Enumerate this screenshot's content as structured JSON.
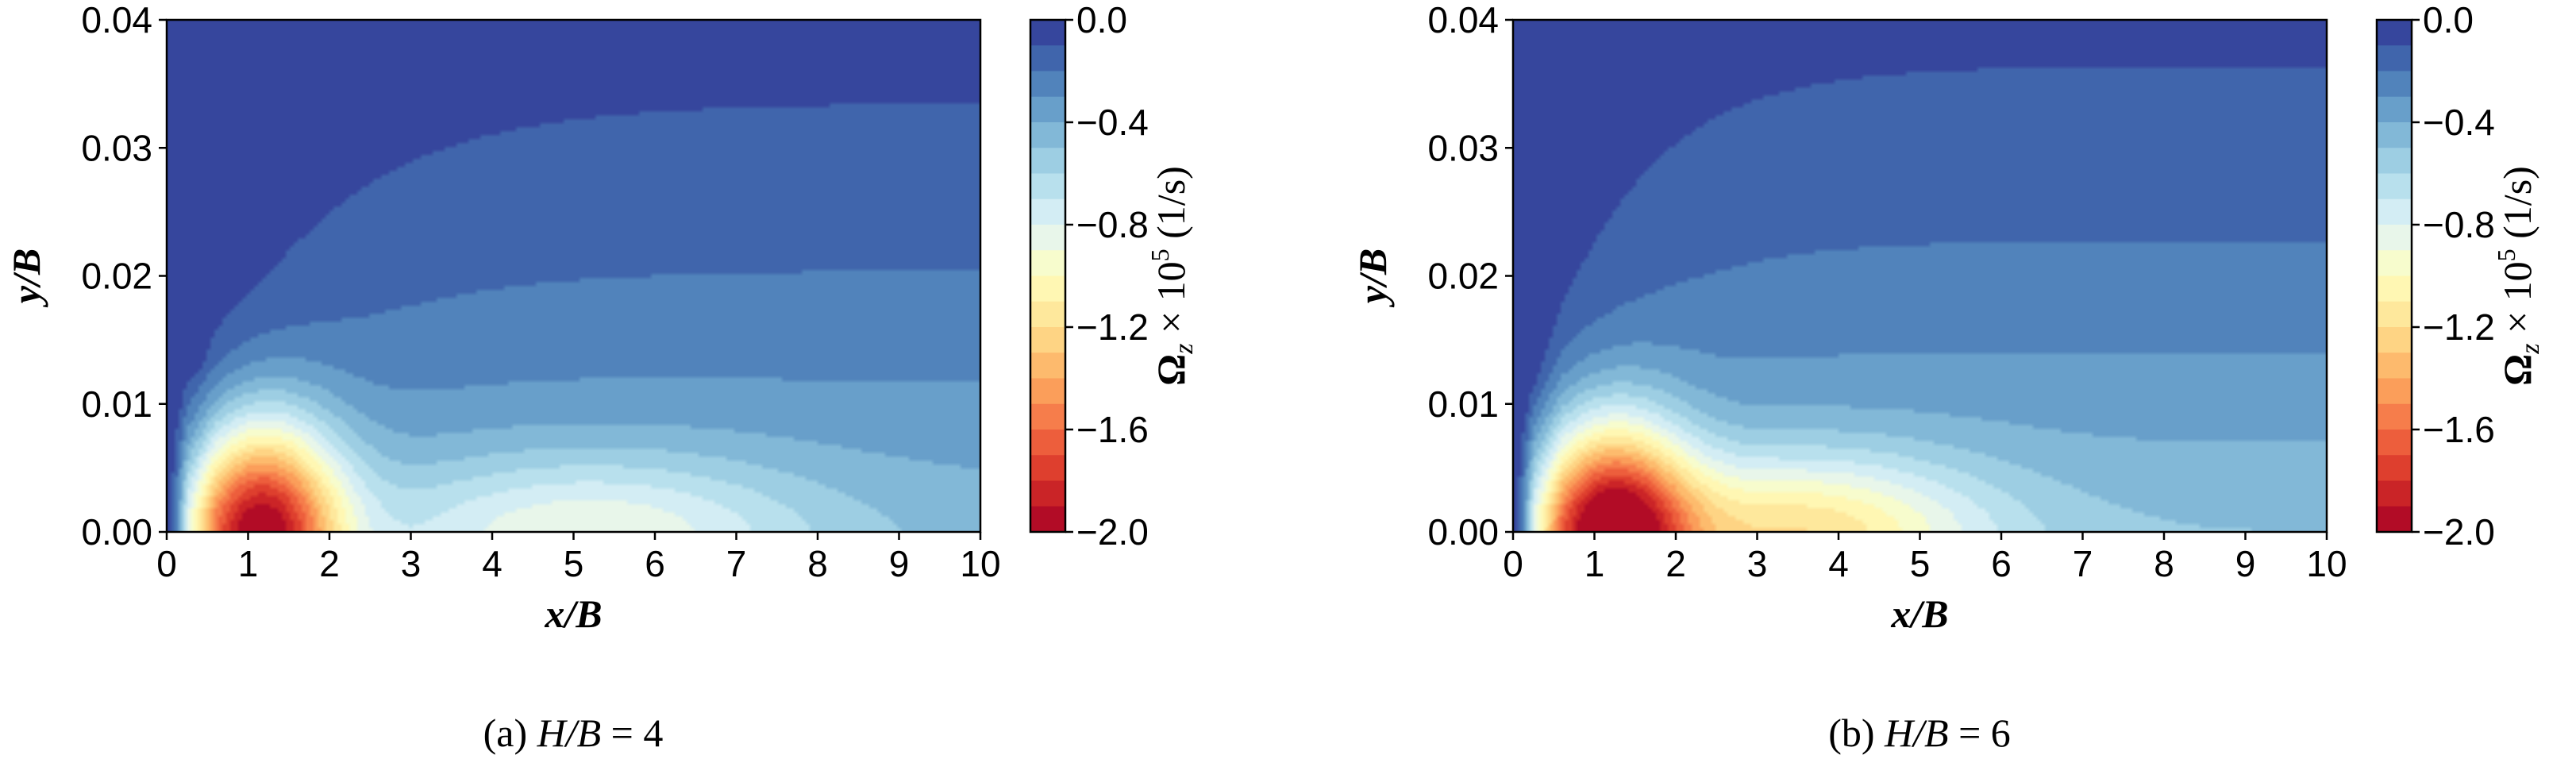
{
  "chart_data": [
    {
      "type": "contour",
      "caption": "(a) H/B = 4",
      "caption_parts": {
        "prefix": "(a) ",
        "var": "H/B",
        "suffix": " = 4"
      },
      "xlabel": "x/B",
      "ylabel": "y/B",
      "xlim": [
        0,
        10
      ],
      "ylim": [
        0,
        0.04
      ],
      "xticks": [
        "0",
        "1",
        "2",
        "3",
        "4",
        "5",
        "6",
        "7",
        "8",
        "9",
        "10"
      ],
      "yticks": [
        "0.00",
        "0.01",
        "0.02",
        "0.03",
        "0.04"
      ],
      "field": {
        "peak_x": 1.15,
        "peak_y": 0.0,
        "peak_value": -2.0,
        "secondary_x": 5.2,
        "secondary_y": 0.0,
        "secondary_value": -0.9,
        "quiet_region": "upper-left"
      },
      "colorbar": {
        "label": "Ωz × 10⁵ (1/s)",
        "label_parts": {
          "omega": "Ω",
          "sub": "z",
          "times": " × 10",
          "sup": "5",
          "unit": " (1/s)"
        },
        "range": [
          -2.0,
          0.0
        ],
        "ticks": [
          "0.0",
          "−0.4",
          "−0.8",
          "−1.2",
          "−1.6",
          "−2.0"
        ],
        "tick_values": [
          0.0,
          -0.4,
          -0.8,
          -1.2,
          -1.6,
          -2.0
        ],
        "colormap": "RdYlBu"
      }
    },
    {
      "type": "contour",
      "caption": "(b) H/B = 6",
      "caption_parts": {
        "prefix": "(b) ",
        "var": "H/B",
        "suffix": " = 6"
      },
      "xlabel": "x/B",
      "ylabel": "y/B",
      "xlim": [
        0,
        10
      ],
      "ylim": [
        0,
        0.04
      ],
      "xticks": [
        "0",
        "1",
        "2",
        "3",
        "4",
        "5",
        "6",
        "7",
        "8",
        "9",
        "10"
      ],
      "yticks": [
        "0.00",
        "0.01",
        "0.02",
        "0.03",
        "0.04"
      ],
      "field": {
        "peak_x": 1.2,
        "peak_y": 0.0,
        "peak_value": -1.95,
        "secondary_x": 3.5,
        "secondary_y": 0.0,
        "secondary_value": -1.15,
        "quiet_region": "top"
      },
      "colorbar": {
        "label": "Ωz × 10⁵ (1/s)",
        "label_parts": {
          "omega": "Ω",
          "sub": "z",
          "times": " × 10",
          "sup": "5",
          "unit": " (1/s)"
        },
        "range": [
          -2.0,
          0.0
        ],
        "ticks": [
          "0.0",
          "−0.4",
          "−0.8",
          "−1.2",
          "−1.6",
          "−2.0"
        ],
        "tick_values": [
          0.0,
          -0.4,
          -0.8,
          -1.2,
          -1.6,
          -2.0
        ],
        "colormap": "RdYlBu"
      }
    }
  ],
  "colors": {
    "colormap_stops": [
      "#a50026",
      "#d73027",
      "#f46d43",
      "#fdae61",
      "#fee090",
      "#ffffbf",
      "#e0f3f8",
      "#abd9e9",
      "#74add1",
      "#4575b4",
      "#313695"
    ]
  }
}
